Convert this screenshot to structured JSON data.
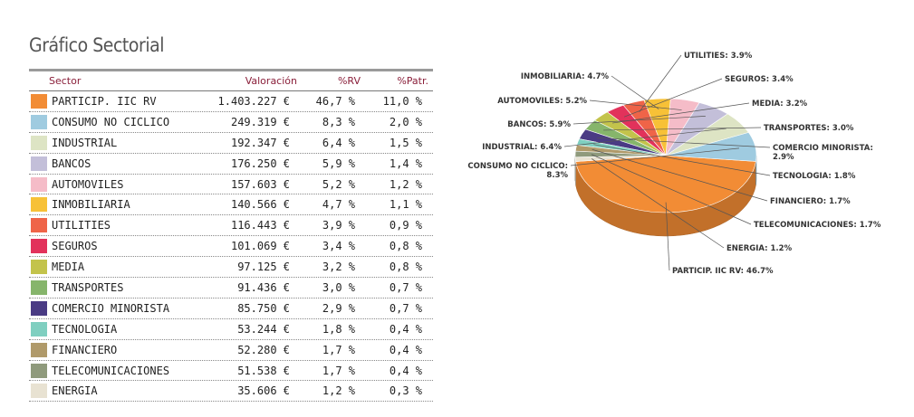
{
  "page": {
    "title": "Gráfico Sectorial"
  },
  "table": {
    "headers": {
      "sector": "Sector",
      "valoracion": "Valoración",
      "rv": "%RV",
      "patr": "%Patr."
    },
    "rows": [
      {
        "sector": "PARTICIP. IIC RV",
        "valoracion": "1.403.227 €",
        "rv": "46,7 %",
        "patr": "11,0 %",
        "color": "#f28c35"
      },
      {
        "sector": "CONSUMO NO CICLICO",
        "valoracion": "249.319 €",
        "rv": "8,3 %",
        "patr": "2,0 %",
        "color": "#9fcbe0"
      },
      {
        "sector": "INDUSTRIAL",
        "valoracion": "192.347 €",
        "rv": "6,4 %",
        "patr": "1,5 %",
        "color": "#dde4c4"
      },
      {
        "sector": "BANCOS",
        "valoracion": "176.250 €",
        "rv": "5,9 %",
        "patr": "1,4 %",
        "color": "#c3bfd9"
      },
      {
        "sector": "AUTOMOVILES",
        "valoracion": "157.603 €",
        "rv": "5,2 %",
        "patr": "1,2 %",
        "color": "#f5bcc8"
      },
      {
        "sector": "INMOBILIARIA",
        "valoracion": "140.566 €",
        "rv": "4,7 %",
        "patr": "1,1 %",
        "color": "#f7c137"
      },
      {
        "sector": "UTILITIES",
        "valoracion": "116.443 €",
        "rv": "3,9 %",
        "patr": "0,9 %",
        "color": "#ef6448"
      },
      {
        "sector": "SEGUROS",
        "valoracion": "101.069 €",
        "rv": "3,4 %",
        "patr": "0,8 %",
        "color": "#e2325b"
      },
      {
        "sector": "MEDIA",
        "valoracion": "97.125 €",
        "rv": "3,2 %",
        "patr": "0,8 %",
        "color": "#c3c34b"
      },
      {
        "sector": "TRANSPORTES",
        "valoracion": "91.436 €",
        "rv": "3,0 %",
        "patr": "0,7 %",
        "color": "#86b56b"
      },
      {
        "sector": "COMERCIO MINORISTA",
        "valoracion": "85.750 €",
        "rv": "2,9 %",
        "patr": "0,7 %",
        "color": "#4a3b84"
      },
      {
        "sector": "TECNOLOGIA",
        "valoracion": "53.244 €",
        "rv": "1,8 %",
        "patr": "0,4 %",
        "color": "#7fcfc0"
      },
      {
        "sector": "FINANCIERO",
        "valoracion": "52.280 €",
        "rv": "1,7 %",
        "patr": "0,4 %",
        "color": "#b09a6a"
      },
      {
        "sector": "TELECOMUNICACIONES",
        "valoracion": "51.538 €",
        "rv": "1,7 %",
        "patr": "0,4 %",
        "color": "#8f9a7c"
      },
      {
        "sector": "ENERGIA",
        "valoracion": "35.606 €",
        "rv": "1,2 %",
        "patr": "0,3 %",
        "color": "#e8e2d2"
      }
    ]
  },
  "chart_data": {
    "type": "pie",
    "title": "",
    "categories": [
      "PARTICIP. IIC RV",
      "CONSUMO NO CICLICO",
      "INDUSTRIAL",
      "BANCOS",
      "AUTOMOVILES",
      "INMOBILIARIA",
      "UTILITIES",
      "SEGUROS",
      "MEDIA",
      "TRANSPORTES",
      "COMERCIO MINORISTA",
      "TECNOLOGIA",
      "FINANCIERO",
      "TELECOMUNICACIONES",
      "ENERGIA"
    ],
    "values": [
      46.7,
      8.3,
      6.4,
      5.9,
      5.2,
      4.7,
      3.9,
      3.4,
      3.2,
      3.0,
      2.9,
      1.8,
      1.7,
      1.7,
      1.2
    ],
    "colors": [
      "#f28c35",
      "#9fcbe0",
      "#dde4c4",
      "#c3bfd9",
      "#f5bcc8",
      "#f7c137",
      "#ef6448",
      "#e2325b",
      "#c3c34b",
      "#86b56b",
      "#4a3b84",
      "#7fcfc0",
      "#b09a6a",
      "#8f9a7c",
      "#e8e2d2"
    ],
    "labels": [
      [
        "PARTICIP. IIC RV: 46.7%"
      ],
      [
        "CONSUMO NO CICLICO:",
        "8.3%"
      ],
      [
        "INDUSTRIAL: 6.4%"
      ],
      [
        "BANCOS: 5.9%"
      ],
      [
        "AUTOMOVILES: 5.2%"
      ],
      [
        "INMOBILIARIA: 4.7%"
      ],
      [
        "UTILITIES: 3.9%"
      ],
      [
        "SEGUROS: 3.4%"
      ],
      [
        "MEDIA: 3.2%"
      ],
      [
        "TRANSPORTES: 3.0%"
      ],
      [
        "COMERCIO MINORISTA:",
        "2.9%"
      ],
      [
        "TECNOLOGIA: 1.8%"
      ],
      [
        "FINANCIERO: 1.7%"
      ],
      [
        "TELECOMUNICACIONES: 1.7%"
      ],
      [
        "ENERGIA: 1.2%"
      ]
    ],
    "legend": "none"
  }
}
